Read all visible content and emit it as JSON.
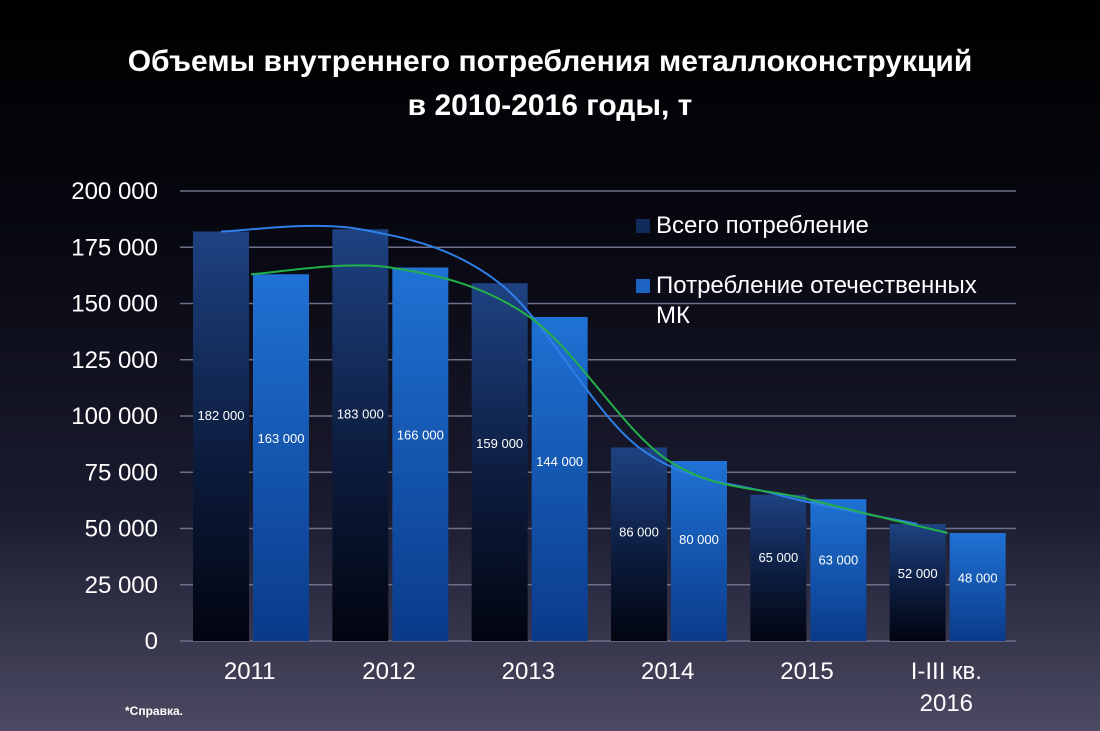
{
  "title_line1": "Объемы внутреннего потребления металлоконструкций",
  "title_line2": "в 2010-2016 годы, т",
  "footnote": "*Справка.",
  "chart_data": {
    "type": "bar",
    "categories": [
      [
        "2011"
      ],
      [
        "2012"
      ],
      [
        "2013"
      ],
      [
        "2014"
      ],
      [
        "2015"
      ],
      [
        "I-III кв.",
        "2016"
      ]
    ],
    "series": [
      {
        "name": "Всего потребление",
        "values": [
          182000,
          183000,
          159000,
          86000,
          65000,
          52000
        ],
        "labels": [
          "182 000",
          "183 000",
          "159 000",
          "86 000",
          "65 000",
          "52 000"
        ],
        "color": "#1c3f7a"
      },
      {
        "name": "Потребление отечественных МК",
        "values": [
          163000,
          166000,
          144000,
          80000,
          63000,
          48000
        ],
        "labels": [
          "163 000",
          "166 000",
          "144 000",
          "80 000",
          "63 000",
          "48 000"
        ],
        "color": "#1f6fd0"
      }
    ],
    "trendlines": [
      {
        "series": "Всего потребление",
        "color": "#2f7fe8"
      },
      {
        "series": "Потребление отечественных МК",
        "color": "#22b04a"
      }
    ],
    "legend_position": "top-right",
    "ylim": [
      0,
      200000
    ],
    "yticks": [
      0,
      25000,
      50000,
      75000,
      100000,
      125000,
      150000,
      175000,
      200000
    ],
    "ytick_labels": [
      "0",
      "25 000",
      "50 000",
      "75 000",
      "100 000",
      "125 000",
      "150 000",
      "175 000",
      "200 000"
    ],
    "grid": true
  }
}
